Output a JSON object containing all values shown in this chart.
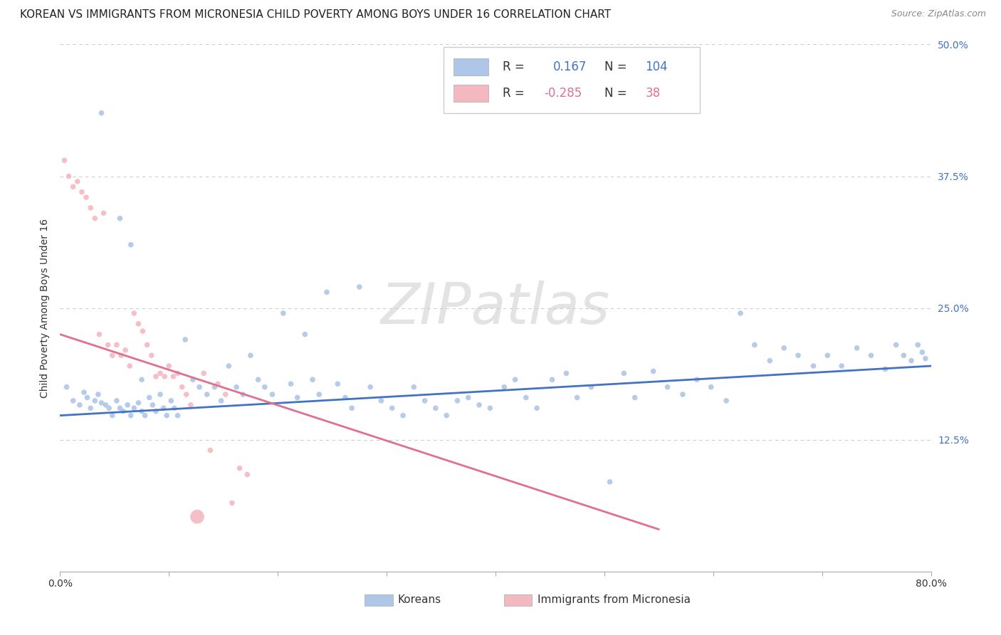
{
  "title": "KOREAN VS IMMIGRANTS FROM MICRONESIA CHILD POVERTY AMONG BOYS UNDER 16 CORRELATION CHART",
  "source": "Source: ZipAtlas.com",
  "ylabel": "Child Poverty Among Boys Under 16",
  "xlim": [
    0.0,
    0.8
  ],
  "ylim": [
    0.0,
    0.5
  ],
  "background_color": "#ffffff",
  "scatter_color_blue": "#aec6e8",
  "scatter_color_pink": "#f4b8c1",
  "line_color_blue": "#4472c4",
  "line_color_pink": "#e07090",
  "blue_line_x": [
    0.0,
    0.8
  ],
  "blue_line_y": [
    0.148,
    0.195
  ],
  "pink_line_x": [
    0.0,
    0.55
  ],
  "pink_line_y": [
    0.225,
    0.04
  ],
  "title_fontsize": 11,
  "axis_label_fontsize": 10,
  "tick_fontsize": 10,
  "legend_fontsize": 11,
  "watermark_text": "ZIPatlas",
  "blue_x": [
    0.006,
    0.012,
    0.018,
    0.022,
    0.025,
    0.028,
    0.032,
    0.035,
    0.038,
    0.042,
    0.045,
    0.048,
    0.052,
    0.055,
    0.058,
    0.062,
    0.065,
    0.068,
    0.072,
    0.075,
    0.078,
    0.082,
    0.085,
    0.088,
    0.092,
    0.095,
    0.098,
    0.102,
    0.105,
    0.108,
    0.115,
    0.122,
    0.128,
    0.135,
    0.142,
    0.148,
    0.155,
    0.162,
    0.168,
    0.175,
    0.182,
    0.188,
    0.195,
    0.205,
    0.212,
    0.218,
    0.225,
    0.232,
    0.238,
    0.245,
    0.255,
    0.262,
    0.268,
    0.275,
    0.285,
    0.295,
    0.305,
    0.315,
    0.325,
    0.335,
    0.345,
    0.355,
    0.365,
    0.375,
    0.385,
    0.395,
    0.408,
    0.418,
    0.428,
    0.438,
    0.452,
    0.465,
    0.475,
    0.488,
    0.505,
    0.518,
    0.528,
    0.545,
    0.558,
    0.572,
    0.585,
    0.598,
    0.612,
    0.625,
    0.638,
    0.652,
    0.665,
    0.678,
    0.692,
    0.705,
    0.718,
    0.732,
    0.745,
    0.758,
    0.768,
    0.775,
    0.782,
    0.788,
    0.792,
    0.795,
    0.038,
    0.055,
    0.065,
    0.075
  ],
  "blue_y": [
    0.175,
    0.162,
    0.158,
    0.17,
    0.165,
    0.155,
    0.162,
    0.168,
    0.16,
    0.158,
    0.155,
    0.148,
    0.162,
    0.155,
    0.152,
    0.158,
    0.148,
    0.155,
    0.16,
    0.152,
    0.148,
    0.165,
    0.158,
    0.152,
    0.168,
    0.155,
    0.148,
    0.162,
    0.155,
    0.148,
    0.22,
    0.182,
    0.175,
    0.168,
    0.175,
    0.162,
    0.195,
    0.175,
    0.168,
    0.205,
    0.182,
    0.175,
    0.168,
    0.245,
    0.178,
    0.165,
    0.225,
    0.182,
    0.168,
    0.265,
    0.178,
    0.165,
    0.155,
    0.27,
    0.175,
    0.162,
    0.155,
    0.148,
    0.175,
    0.162,
    0.155,
    0.148,
    0.162,
    0.165,
    0.158,
    0.155,
    0.175,
    0.182,
    0.165,
    0.155,
    0.182,
    0.188,
    0.165,
    0.175,
    0.085,
    0.188,
    0.165,
    0.19,
    0.175,
    0.168,
    0.182,
    0.175,
    0.162,
    0.245,
    0.215,
    0.2,
    0.212,
    0.205,
    0.195,
    0.205,
    0.195,
    0.212,
    0.205,
    0.192,
    0.215,
    0.205,
    0.2,
    0.215,
    0.208,
    0.202,
    0.435,
    0.335,
    0.31,
    0.182
  ],
  "blue_sizes": [
    30,
    30,
    30,
    30,
    30,
    30,
    30,
    30,
    30,
    30,
    30,
    30,
    30,
    30,
    30,
    30,
    30,
    30,
    30,
    30,
    30,
    30,
    30,
    30,
    30,
    30,
    30,
    30,
    30,
    30,
    30,
    30,
    30,
    30,
    30,
    30,
    30,
    30,
    30,
    30,
    30,
    30,
    30,
    30,
    30,
    30,
    30,
    30,
    30,
    30,
    30,
    30,
    30,
    30,
    30,
    30,
    30,
    30,
    30,
    30,
    30,
    30,
    30,
    30,
    30,
    30,
    30,
    30,
    30,
    30,
    30,
    30,
    30,
    30,
    30,
    30,
    30,
    30,
    30,
    30,
    30,
    30,
    30,
    30,
    30,
    30,
    30,
    30,
    30,
    30,
    30,
    30,
    30,
    30,
    30,
    30,
    30,
    30,
    30,
    30,
    30,
    30,
    30,
    30
  ],
  "pink_x": [
    0.004,
    0.008,
    0.012,
    0.016,
    0.02,
    0.024,
    0.028,
    0.032,
    0.036,
    0.04,
    0.044,
    0.048,
    0.052,
    0.056,
    0.06,
    0.064,
    0.068,
    0.072,
    0.076,
    0.08,
    0.084,
    0.088,
    0.092,
    0.096,
    0.1,
    0.104,
    0.108,
    0.112,
    0.116,
    0.12,
    0.126,
    0.132,
    0.138,
    0.145,
    0.152,
    0.158,
    0.165,
    0.172
  ],
  "pink_y": [
    0.39,
    0.375,
    0.365,
    0.37,
    0.36,
    0.355,
    0.345,
    0.335,
    0.225,
    0.34,
    0.215,
    0.205,
    0.215,
    0.205,
    0.21,
    0.195,
    0.245,
    0.235,
    0.228,
    0.215,
    0.205,
    0.185,
    0.188,
    0.185,
    0.195,
    0.185,
    0.188,
    0.175,
    0.168,
    0.158,
    0.052,
    0.188,
    0.115,
    0.178,
    0.168,
    0.065,
    0.098,
    0.092
  ],
  "pink_sizes": [
    30,
    30,
    30,
    30,
    30,
    30,
    30,
    30,
    30,
    30,
    30,
    30,
    30,
    30,
    30,
    30,
    30,
    30,
    30,
    30,
    30,
    30,
    30,
    30,
    30,
    30,
    30,
    30,
    30,
    30,
    200,
    30,
    30,
    30,
    30,
    30,
    30,
    30
  ]
}
